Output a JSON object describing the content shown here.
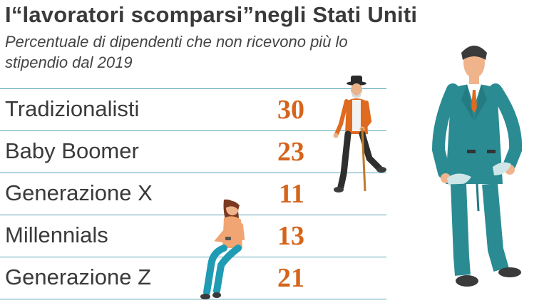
{
  "title": "I“lavoratori scomparsi”negli Stati Uniti",
  "subtitle": "Percentuale di dipendenti che non ricevono più lo stipendio dal 2019",
  "chart_data": {
    "type": "table",
    "title": "I“lavoratori scomparsi”negli Stati Uniti",
    "subtitle": "Percentuale di dipendenti che non ricevono più lo stipendio dal 2019",
    "categories": [
      "Tradizionalisti",
      "Baby Boomer",
      "Generazione X",
      "Millennials",
      "Generazione Z"
    ],
    "values": [
      30,
      23,
      11,
      13,
      21
    ]
  },
  "colors": {
    "accent": "#d5641c",
    "rule": "#5aa3b5",
    "suit": "#2a8b93"
  },
  "illustrations": [
    "old-man-with-cane-icon",
    "seated-young-woman-with-phone-icon",
    "man-with-empty-pockets-icon"
  ]
}
